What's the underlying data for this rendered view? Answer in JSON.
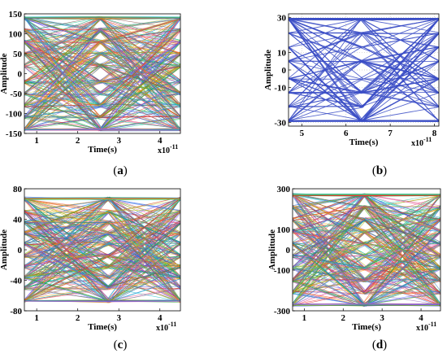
{
  "chart_data": [
    {
      "type": "line",
      "panel": "a",
      "caption_open": "(",
      "caption_letter": "a",
      "caption_close": ")",
      "xlabel": "Time(s)",
      "x_exponent": "x10",
      "x_exponent_power": "-11",
      "ylabel": "Amplitude",
      "xlim": [
        0.7,
        4.5
      ],
      "ylim": [
        -150,
        150
      ],
      "xticks": [
        1,
        2,
        3,
        4
      ],
      "xtick_labels": [
        "1",
        "2",
        "3",
        "4"
      ],
      "yticks": [
        -150,
        -100,
        -50,
        0,
        50,
        100,
        150
      ],
      "ytick_labels": [
        "-150",
        "-100",
        "-50",
        "0",
        "50",
        "100",
        "150"
      ],
      "eye_crossing_x": 2.55,
      "signal_levels": [
        -140,
        -110,
        -80,
        -50,
        -20,
        20,
        50,
        80,
        110,
        140
      ],
      "eye_boundary_x": [
        0.7,
        4.5
      ],
      "color_style": "multicolor"
    },
    {
      "type": "line",
      "panel": "b",
      "caption_open": "(",
      "caption_letter": "b",
      "caption_close": ")",
      "xlabel": "Time(s)",
      "x_exponent": "x10",
      "x_exponent_power": "-11",
      "ylabel": "Amplitude",
      "xlim": [
        4.7,
        8.1
      ],
      "ylim": [
        -32,
        32
      ],
      "xticks": [
        5,
        6,
        7,
        8
      ],
      "xtick_labels": [
        "5",
        "6",
        "7",
        "8"
      ],
      "yticks": [
        -30,
        -10,
        0,
        10,
        30
      ],
      "ytick_labels": [
        "-30",
        "-10",
        "0",
        "10",
        "30"
      ],
      "eye_crossing_x": 6.35,
      "signal_levels": [
        -29,
        -21,
        -13,
        -5,
        5,
        13,
        21,
        29
      ],
      "eye_boundary_x": [
        4.7,
        8.1
      ],
      "color_style": "blue",
      "line_color": "#3b4ec6"
    },
    {
      "type": "line",
      "panel": "c",
      "caption_open": "(",
      "caption_letter": "c",
      "caption_close": ")",
      "xlabel": "Time(s)",
      "x_exponent": "x10",
      "x_exponent_power": "-11",
      "ylabel": "Amplitude",
      "xlim": [
        0.7,
        4.5
      ],
      "ylim": [
        -80,
        80
      ],
      "xticks": [
        1,
        2,
        3,
        4
      ],
      "xtick_labels": [
        "1",
        "2",
        "3",
        "4"
      ],
      "yticks": [
        -80,
        -40,
        0,
        40,
        80
      ],
      "ytick_labels": [
        "-80",
        "-40",
        "0",
        "40",
        "80"
      ],
      "eye_crossing_x": 2.75,
      "signal_levels": [
        -67,
        -50,
        -36,
        -22,
        -8,
        8,
        22,
        36,
        50,
        67
      ],
      "eye_boundary_x": [
        0.7,
        4.5
      ],
      "color_style": "multicolor"
    },
    {
      "type": "line",
      "panel": "d",
      "caption_open": "(",
      "caption_letter": "d",
      "caption_close": ")",
      "xlabel": "Time(s)",
      "x_exponent": "x10",
      "x_exponent_power": "-11",
      "ylabel": "Amplitude",
      "xlim": [
        0.7,
        4.5
      ],
      "ylim": [
        -300,
        300
      ],
      "xticks": [
        1,
        2,
        3,
        4
      ],
      "xtick_labels": [
        "1",
        "2",
        "3",
        "4"
      ],
      "yticks": [
        -300,
        -100,
        0,
        100,
        300
      ],
      "ytick_labels": [
        "-300",
        "-100",
        "0",
        "100",
        "300"
      ],
      "eye_crossing_x": 2.55,
      "signal_levels": [
        -270,
        -210,
        -150,
        -90,
        -30,
        30,
        90,
        150,
        210,
        270
      ],
      "eye_boundary_x": [
        0.7,
        4.5
      ],
      "color_style": "multicolor"
    }
  ]
}
